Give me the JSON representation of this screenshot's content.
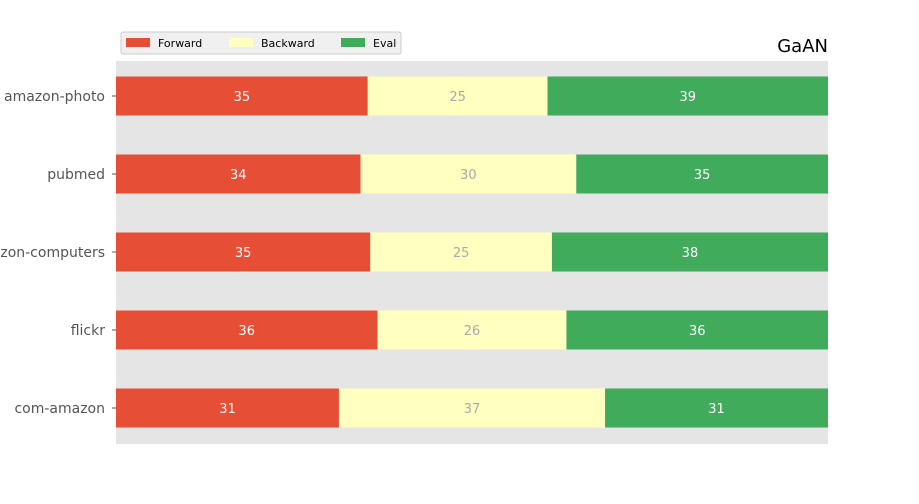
{
  "chart_data": {
    "type": "bar",
    "orientation": "horizontal",
    "stacked": true,
    "title": "GaAN",
    "categories": [
      "amazon-photo",
      "pubmed",
      "amazon-computers",
      "flickr",
      "com-amazon"
    ],
    "series": [
      {
        "name": "Forward",
        "values": [
          35,
          34,
          35,
          36,
          31
        ],
        "color": "#e64f35",
        "label_color": "#ffffff"
      },
      {
        "name": "Backward",
        "values": [
          25,
          30,
          25,
          26,
          37
        ],
        "color": "#ffffc0",
        "label_color": "#aaaaaa"
      },
      {
        "name": "Eval",
        "values": [
          39,
          35,
          38,
          36,
          31
        ],
        "color": "#3fab5b",
        "label_color": "#ffffff"
      }
    ],
    "xlim": [
      0,
      1
    ],
    "normalized": true,
    "grid": false,
    "plot_background": "#e5e5e5",
    "legend_position": "top-left"
  }
}
